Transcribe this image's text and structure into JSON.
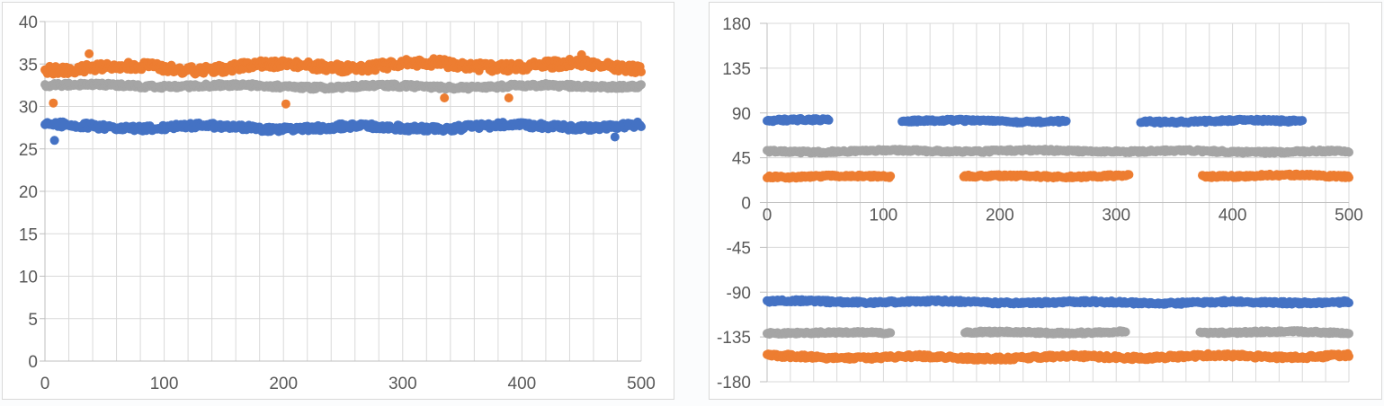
{
  "page": {
    "background": "#FBFCFD",
    "title": "",
    "panels": [
      {
        "name": "left-chart-panel"
      },
      {
        "name": "right-chart-panel"
      }
    ]
  },
  "palette": {
    "series_blue": "#4472C4",
    "series_orange": "#ED7D31",
    "series_gray": "#A5A5A5",
    "gridline": "#D9D9D9",
    "axis_line": "#BFBFBF",
    "tick_label_color": "#595959",
    "panel_background": "#FFFFFF",
    "panel_border": "#D9D9D9"
  },
  "chart_data": [
    {
      "id": "left-scatter",
      "type": "scatter",
      "title": "",
      "xlabel": "",
      "ylabel": "",
      "legend": "none",
      "grid": true,
      "marker": "circle",
      "marker_radius": 5,
      "xlim": [
        0,
        500
      ],
      "ylim": [
        0,
        40
      ],
      "x_tick_values": [
        0,
        100,
        200,
        300,
        400,
        500
      ],
      "x_tick_labels": [
        "0",
        "100",
        "200",
        "300",
        "400",
        "500"
      ],
      "x_grid_step": 20,
      "y_tick_values": [
        0,
        5,
        10,
        15,
        20,
        25,
        30,
        35,
        40
      ],
      "y_tick_labels": [
        "0",
        "5",
        "10",
        "15",
        "20",
        "25",
        "30",
        "35",
        "40"
      ],
      "series": [
        {
          "name": "series-1-blue",
          "color": "#4472C4",
          "pattern": "constant-band",
          "mean": 27.6,
          "spread": 0.4,
          "segments": [
            [
              0,
              500
            ]
          ],
          "outliers": [
            [
              8,
              26.0
            ],
            [
              478,
              26.4
            ]
          ]
        },
        {
          "name": "series-2-orange",
          "color": "#ED7D31",
          "pattern": "constant-band",
          "mean": 34.7,
          "spread": 0.6,
          "segments": [
            [
              0,
              500
            ]
          ],
          "outliers": [
            [
              7,
              30.4
            ],
            [
              202,
              30.3
            ],
            [
              335,
              31.0
            ],
            [
              389,
              31.0
            ],
            [
              37,
              36.2
            ],
            [
              450,
              36.1
            ]
          ]
        },
        {
          "name": "series-3-gray",
          "color": "#A5A5A5",
          "pattern": "constant-band",
          "mean": 32.4,
          "spread": 0.25,
          "segments": [
            [
              0,
              500
            ]
          ],
          "outliers": []
        }
      ]
    },
    {
      "id": "right-scatter",
      "type": "scatter",
      "title": "",
      "xlabel": "",
      "ylabel": "",
      "legend": "none",
      "grid": true,
      "marker": "circle",
      "marker_radius": 5,
      "xlim": [
        0,
        500
      ],
      "ylim": [
        -180,
        180
      ],
      "x_tick_values": [
        0,
        100,
        200,
        300,
        400,
        500
      ],
      "x_tick_labels": [
        "0",
        "100",
        "200",
        "300",
        "400",
        "500"
      ],
      "x_grid_step": 20,
      "y_tick_values": [
        180,
        135,
        90,
        45,
        0,
        -45,
        -90,
        -135,
        -180
      ],
      "y_tick_labels": [
        "180",
        "135",
        "90",
        "45",
        "0",
        "-45",
        "-90",
        "-135",
        "-180"
      ],
      "series": [
        {
          "name": "series-1-blue-upper",
          "color": "#4472C4",
          "pattern": "constant-band",
          "mean": 82,
          "spread": 1.5,
          "segments": [
            [
              0,
              53
            ],
            [
              116,
              257
            ],
            [
              321,
              460
            ]
          ],
          "outliers": []
        },
        {
          "name": "series-1-blue-lower",
          "color": "#4472C4",
          "pattern": "constant-band",
          "mean": -100,
          "spread": 1.6,
          "segments": [
            [
              0,
              500
            ]
          ],
          "outliers": []
        },
        {
          "name": "series-2-orange-upper",
          "color": "#ED7D31",
          "pattern": "constant-band",
          "mean": 26.5,
          "spread": 1.5,
          "segments": [
            [
              0,
              106
            ],
            [
              169,
              311
            ],
            [
              374,
              500
            ]
          ],
          "outliers": []
        },
        {
          "name": "series-2-orange-lower",
          "color": "#ED7D31",
          "pattern": "constant-band",
          "mean": -155,
          "spread": 2.2,
          "segments": [
            [
              0,
              500
            ]
          ],
          "outliers": []
        },
        {
          "name": "series-3-gray-upper",
          "color": "#A5A5A5",
          "pattern": "constant-band",
          "mean": 51.5,
          "spread": 1.4,
          "segments": [
            [
              0,
              500
            ]
          ],
          "outliers": []
        },
        {
          "name": "series-3-gray-lower",
          "color": "#A5A5A5",
          "pattern": "constant-band",
          "mean": -130.5,
          "spread": 1.3,
          "segments": [
            [
              0,
              106
            ],
            [
              170,
              308
            ],
            [
              372,
              500
            ]
          ],
          "outliers": []
        }
      ]
    }
  ]
}
